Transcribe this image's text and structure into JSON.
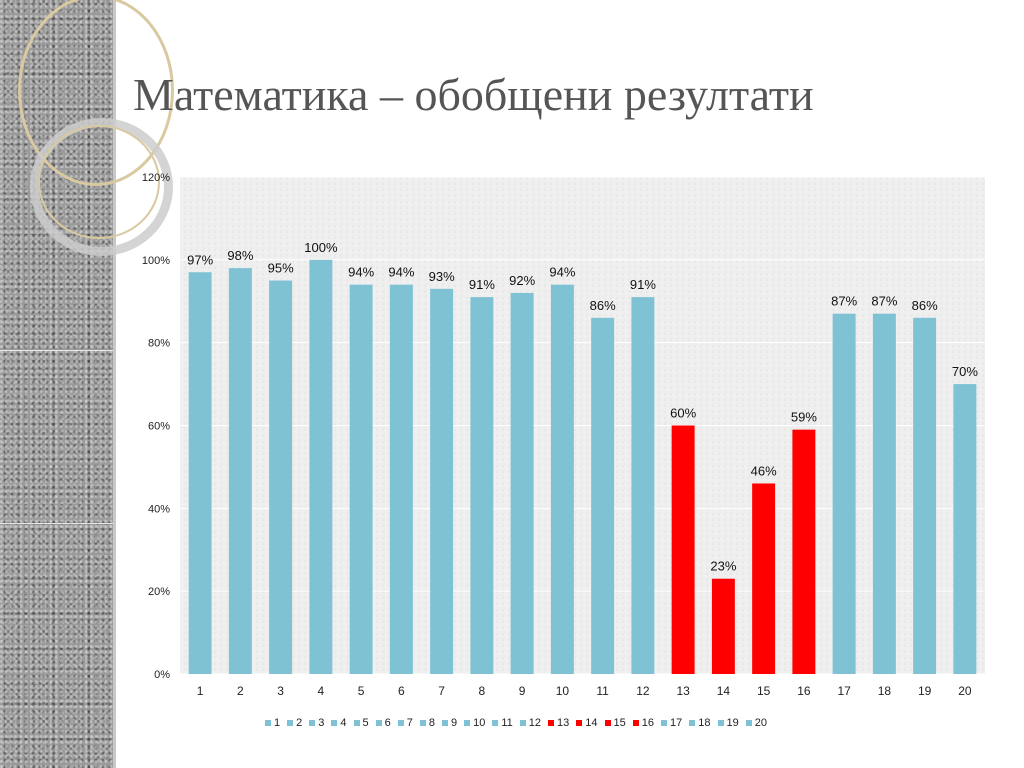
{
  "slide": {
    "title": "Математика – обобщени резултати"
  },
  "colors": {
    "normal_bar": "#7ec2d4",
    "low_bar": "#ff0000"
  },
  "chart_data": {
    "type": "bar",
    "categories": [
      "1",
      "2",
      "3",
      "4",
      "5",
      "6",
      "7",
      "8",
      "9",
      "10",
      "11",
      "12",
      "13",
      "14",
      "15",
      "16",
      "17",
      "18",
      "19",
      "20"
    ],
    "values": [
      97,
      98,
      95,
      100,
      94,
      94,
      93,
      91,
      92,
      94,
      86,
      91,
      60,
      23,
      46,
      59,
      87,
      87,
      86,
      70
    ],
    "data_labels": [
      "97%",
      "98%",
      "95%",
      "100%",
      "94%",
      "94%",
      "93%",
      "91%",
      "92%",
      "94%",
      "86%",
      "91%",
      "60%",
      "23%",
      "46%",
      "59%",
      "87%",
      "87%",
      "86%",
      "70%"
    ],
    "highlighted": [
      "13",
      "14",
      "15",
      "16"
    ],
    "y_ticks": [
      "0%",
      "20%",
      "40%",
      "60%",
      "80%",
      "100%",
      "120%"
    ],
    "ylim": [
      0,
      120
    ],
    "grid": true,
    "legend_position": "bottom",
    "legend": [
      "1",
      "2",
      "3",
      "4",
      "5",
      "6",
      "7",
      "8",
      "9",
      "10",
      "11",
      "12",
      "13",
      "14",
      "15",
      "16",
      "17",
      "18",
      "19",
      "20"
    ]
  }
}
